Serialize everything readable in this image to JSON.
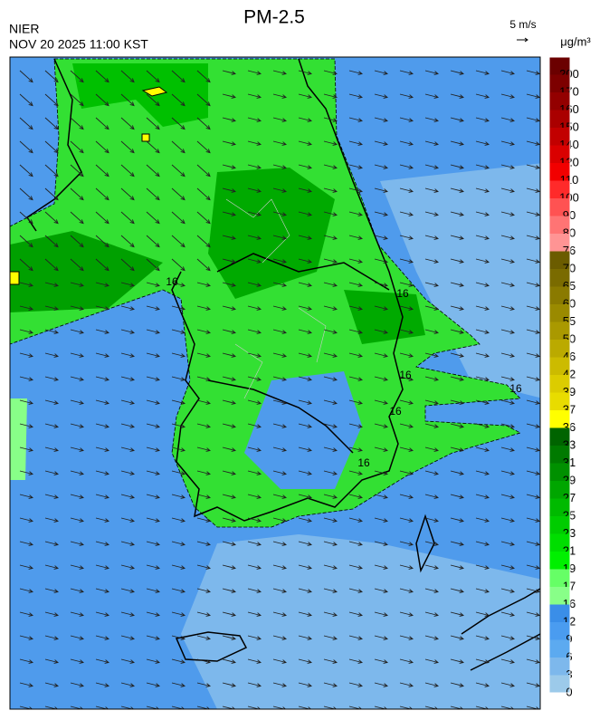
{
  "header": {
    "title": "PM-2.5",
    "agency": "NIER",
    "datetime": "NOV 20 2025 11:00 KST",
    "wind_scale": "5 m/s",
    "unit": "μg/m³"
  },
  "colorbar": {
    "levels": [
      {
        "value": 200,
        "color": "#6b0000"
      },
      {
        "value": 170,
        "color": "#7d0000"
      },
      {
        "value": 160,
        "color": "#930000"
      },
      {
        "value": 150,
        "color": "#aa0000"
      },
      {
        "value": 140,
        "color": "#c20000"
      },
      {
        "value": 120,
        "color": "#da0000"
      },
      {
        "value": 110,
        "color": "#f20000"
      },
      {
        "value": 100,
        "color": "#ff2a2a"
      },
      {
        "value": 90,
        "color": "#ff5252"
      },
      {
        "value": 80,
        "color": "#ff7474"
      },
      {
        "value": 76,
        "color": "#ff9494"
      },
      {
        "value": 70,
        "color": "#6b5c00"
      },
      {
        "value": 65,
        "color": "#7a6b00"
      },
      {
        "value": 60,
        "color": "#8a7a00"
      },
      {
        "value": 55,
        "color": "#9a8a00"
      },
      {
        "value": 50,
        "color": "#aa9900"
      },
      {
        "value": 46,
        "color": "#bbaa00"
      },
      {
        "value": 42,
        "color": "#ccbb00"
      },
      {
        "value": 39,
        "color": "#dccc00"
      },
      {
        "value": 37,
        "color": "#e8dc00"
      },
      {
        "value": 36,
        "color": "#ffff00"
      },
      {
        "value": 33,
        "color": "#006400"
      },
      {
        "value": 31,
        "color": "#007a00"
      },
      {
        "value": 29,
        "color": "#009000"
      },
      {
        "value": 27,
        "color": "#00a600"
      },
      {
        "value": 25,
        "color": "#00ba00"
      },
      {
        "value": 23,
        "color": "#00cc00"
      },
      {
        "value": 21,
        "color": "#00de00"
      },
      {
        "value": 19,
        "color": "#00f000"
      },
      {
        "value": 17,
        "color": "#66ff66"
      },
      {
        "value": 16,
        "color": "#88ff88"
      },
      {
        "value": 12,
        "color": "#3a8ee8"
      },
      {
        "value": 9,
        "color": "#4a9cf0"
      },
      {
        "value": 6,
        "color": "#5caaf0"
      },
      {
        "value": 3,
        "color": "#7db8ec"
      },
      {
        "value": 0,
        "color": "#9ccaea"
      }
    ]
  },
  "contour_labels": [
    "16",
    "16",
    "16",
    "16",
    "16",
    "16"
  ]
}
